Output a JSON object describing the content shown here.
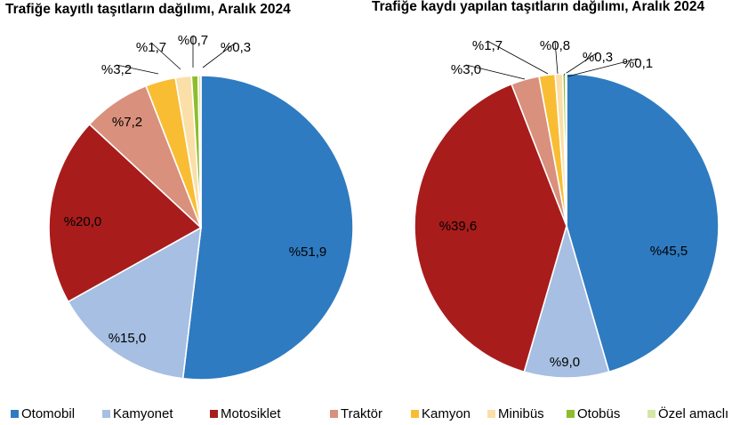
{
  "colors": {
    "Otomobil": "#2e7bc1",
    "Kamyonet": "#a6bfe2",
    "Motosiklet": "#a81c1c",
    "Traktör": "#d9907c",
    "Kamyon": "#f9bd34",
    "Minibüs": "#fbdfa8",
    "Otobüs": "#8ebd2c",
    "Özel amaclı": "#d6e6a6"
  },
  "legend": {
    "position": "bottom",
    "items": [
      "Otomobil",
      "Kamyonet",
      "Motosiklet",
      "Traktör",
      "Kamyon",
      "Minibüs",
      "Otobüs",
      "Özel amaclı"
    ]
  },
  "chart_data": [
    {
      "type": "pie",
      "title": "Trafiğe kayıtlı taşıtların dağılımı, Aralık 2024",
      "categories": [
        "Otomobil",
        "Kamyonet",
        "Motosiklet",
        "Traktör",
        "Kamyon",
        "Minibüs",
        "Otobüs",
        "Özel amaclı"
      ],
      "values": [
        51.9,
        15.0,
        20.0,
        7.2,
        3.2,
        1.7,
        0.7,
        0.3
      ],
      "labels": [
        "%51,9",
        "%15,0",
        "%20,0",
        "%7,2",
        "%3,2",
        "%1,7",
        "%0,7",
        "%0,3"
      ]
    },
    {
      "type": "pie",
      "title": "Trafiğe kaydı yapılan taşıtların dağılımı, Aralık 2024",
      "categories": [
        "Otomobil",
        "Kamyonet",
        "Motosiklet",
        "Traktör",
        "Kamyon",
        "Minibüs",
        "Otobüs",
        "Özel amaclı"
      ],
      "values": [
        45.5,
        9.0,
        39.6,
        3.0,
        1.7,
        0.8,
        0.3,
        0.1
      ],
      "labels": [
        "%45,5",
        "%9,0",
        "%39,6",
        "%3,0",
        "%1,7",
        "%0,8",
        "%0,3",
        "%0,1"
      ]
    }
  ]
}
